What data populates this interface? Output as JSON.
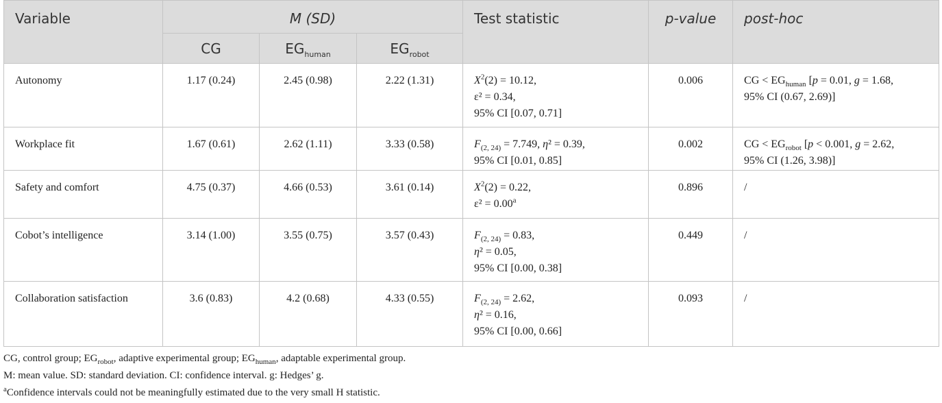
{
  "header": {
    "variable": "Variable",
    "msd": "M (SD)",
    "test": "Test statistic",
    "p": "p-value",
    "posthoc": "post-hoc",
    "groups": [
      [
        {
          "t": "CG"
        }
      ],
      [
        {
          "t": "EG"
        },
        {
          "t": "human",
          "s": "sub"
        }
      ],
      [
        {
          "t": "EG"
        },
        {
          "t": "robot",
          "s": "sub"
        }
      ]
    ]
  },
  "rows": [
    {
      "variable": "Autonomy",
      "cg": "1.17 (0.24)",
      "eg_human": "2.45 (0.98)",
      "eg_robot": "2.22 (1.31)",
      "test": [
        [
          {
            "t": "X",
            "s": "i"
          },
          {
            "t": "2",
            "s": "sup"
          },
          {
            "t": "(2) = 10.12,"
          }
        ],
        [
          {
            "t": "ε² = 0.34,"
          }
        ],
        [
          {
            "t": "95% CI [0.07, 0.71]"
          }
        ]
      ],
      "p": "0.006",
      "posthoc": [
        [
          {
            "t": "CG < EG"
          },
          {
            "t": "human",
            "s": "sub"
          },
          {
            "t": " ["
          },
          {
            "t": "p",
            "s": "i"
          },
          {
            "t": " = 0.01, "
          },
          {
            "t": "g",
            "s": "i"
          },
          {
            "t": " = 1.68,"
          }
        ],
        [
          {
            "t": "95% CI (0.67, 2.69)]"
          }
        ]
      ]
    },
    {
      "variable": "Workplace fit",
      "cg": "1.67 (0.61)",
      "eg_human": "2.62 (1.11)",
      "eg_robot": "3.33 (0.58)",
      "test": [
        [
          {
            "t": "F",
            "s": "i"
          },
          {
            "t": "(2, 24)",
            "s": "sub"
          },
          {
            "t": " = 7.749, "
          },
          {
            "t": "η",
            "s": "i"
          },
          {
            "t": "² = 0.39,"
          }
        ],
        [
          {
            "t": "95% CI [0.01, 0.85]"
          }
        ]
      ],
      "p": "0.002",
      "posthoc": [
        [
          {
            "t": "CG < EG"
          },
          {
            "t": "robot",
            "s": "sub"
          },
          {
            "t": " ["
          },
          {
            "t": "p",
            "s": "i"
          },
          {
            "t": " < 0.001, "
          },
          {
            "t": "g",
            "s": "i"
          },
          {
            "t": " = 2.62,"
          }
        ],
        [
          {
            "t": "95% CI (1.26, 3.98)]"
          }
        ]
      ]
    },
    {
      "variable": "Safety and comfort",
      "cg": "4.75 (0.37)",
      "eg_human": "4.66 (0.53)",
      "eg_robot": "3.61 (0.14)",
      "test": [
        [
          {
            "t": "X",
            "s": "i"
          },
          {
            "t": "2",
            "s": "sup"
          },
          {
            "t": "(2) = 0.22,"
          }
        ],
        [
          {
            "t": "ε² = 0.00"
          },
          {
            "t": "a",
            "s": "sup"
          }
        ]
      ],
      "p": "0.896",
      "posthoc": [
        [
          {
            "t": "/"
          }
        ]
      ]
    },
    {
      "variable": "Cobot’s intelligence",
      "cg": "3.14 (1.00)",
      "eg_human": "3.55 (0.75)",
      "eg_robot": "3.57 (0.43)",
      "test": [
        [
          {
            "t": "F",
            "s": "i"
          },
          {
            "t": "(2, 24)",
            "s": "sub"
          },
          {
            "t": " = 0.83,"
          }
        ],
        [
          {
            "t": "η",
            "s": "i"
          },
          {
            "t": "² = 0.05,"
          }
        ],
        [
          {
            "t": "95% CI [0.00, 0.38]"
          }
        ]
      ],
      "p": "0.449",
      "posthoc": [
        [
          {
            "t": "/"
          }
        ]
      ]
    },
    {
      "variable": "Collaboration satisfaction",
      "cg": "3.6 (0.83)",
      "eg_human": "4.2 (0.68)",
      "eg_robot": "4.33 (0.55)",
      "test": [
        [
          {
            "t": "F",
            "s": "i"
          },
          {
            "t": "(2, 24)",
            "s": "sub"
          },
          {
            "t": " = 2.62,"
          }
        ],
        [
          {
            "t": "η",
            "s": "i"
          },
          {
            "t": "² = 0.16,"
          }
        ],
        [
          {
            "t": "95% CI [0.00, 0.66]"
          }
        ]
      ],
      "p": "0.093",
      "posthoc": [
        [
          {
            "t": "/"
          }
        ]
      ]
    }
  ],
  "notes": [
    [
      {
        "t": "CG, control group; EG"
      },
      {
        "t": "robot",
        "s": "sub"
      },
      {
        "t": ", adaptive experimental group; EG"
      },
      {
        "t": "human",
        "s": "sub"
      },
      {
        "t": ", adaptable experimental group."
      }
    ],
    [
      {
        "t": "M: mean value. SD: standard deviation. CI: confidence interval. g: Hedges’ g."
      }
    ],
    [
      {
        "t": "a",
        "s": "sup"
      },
      {
        "t": "Confidence intervals could not be meaningfully estimated due to the very small H statistic."
      }
    ]
  ]
}
